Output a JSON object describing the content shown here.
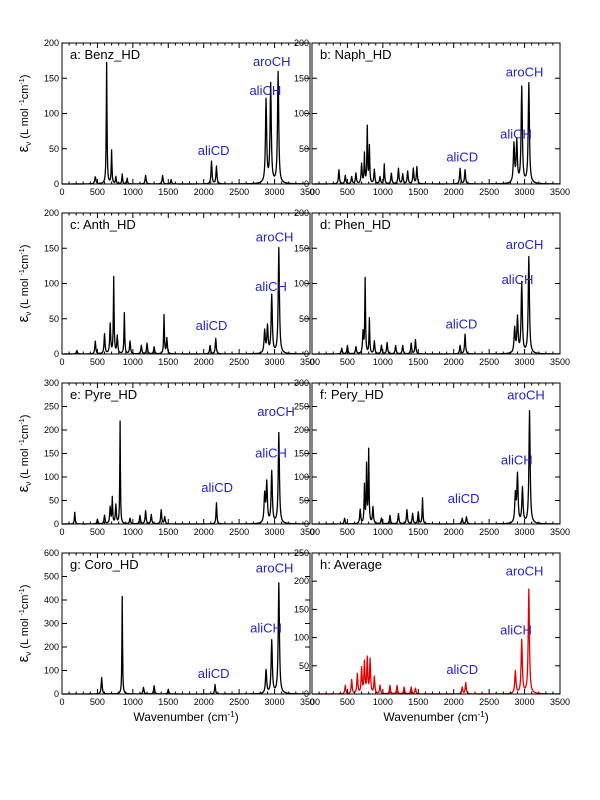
{
  "chart_data": {
    "type": "line",
    "colors": {
      "axis": "#000000",
      "spectrum": "#000000",
      "average": "#e00000",
      "band_label": "#2222cc"
    },
    "y_label": {
      "symbol": "ε",
      "sub": "ν",
      "units": "(L mol",
      "sup1": "-1",
      "mid": "cm",
      "sup2": "-1",
      "close": ")"
    },
    "x_label": {
      "text": "Wavenumber (cm",
      "sup": "-1",
      "close": ")"
    },
    "x_range": [
      0,
      3500
    ],
    "x_ticks": [
      "0",
      "500",
      "1000",
      "1500",
      "2000",
      "2500",
      "3000",
      "3500"
    ],
    "panels": [
      {
        "id": "a",
        "title": "a: Benz_HD",
        "ylim": [
          0,
          200
        ],
        "y_ticks": [
          "0",
          "50",
          "100",
          "150",
          "200"
        ],
        "color_key": "spectrum",
        "peaks": [
          [
            470,
            10,
            10
          ],
          [
            630,
            172,
            6
          ],
          [
            700,
            47,
            6
          ],
          [
            760,
            10,
            6
          ],
          [
            850,
            14,
            6
          ],
          [
            920,
            8,
            6
          ],
          [
            1180,
            12,
            8
          ],
          [
            1420,
            12,
            8
          ],
          [
            1540,
            6,
            8
          ],
          [
            2110,
            32,
            8
          ],
          [
            2180,
            25,
            8
          ],
          [
            2880,
            118,
            10
          ],
          [
            2945,
            140,
            10
          ],
          [
            3050,
            158,
            10
          ]
        ],
        "bands": [
          {
            "text": "aliCD",
            "x": 2140,
            "y": 37
          },
          {
            "text": "aliCH",
            "x": 2870,
            "y": 122
          },
          {
            "text": "aroCH",
            "x": 2960,
            "y": 163
          }
        ]
      },
      {
        "id": "b",
        "title": "b: Naph_HD",
        "ylim": [
          0,
          200
        ],
        "y_ticks": [
          "0",
          "50",
          "100",
          "150",
          "200"
        ],
        "color_key": "spectrum",
        "peaks": [
          [
            380,
            20,
            8
          ],
          [
            470,
            12,
            8
          ],
          [
            560,
            10,
            8
          ],
          [
            620,
            15,
            8
          ],
          [
            700,
            28,
            8
          ],
          [
            740,
            42,
            6
          ],
          [
            780,
            80,
            6
          ],
          [
            810,
            52,
            6
          ],
          [
            880,
            20,
            8
          ],
          [
            960,
            10,
            8
          ],
          [
            1020,
            28,
            6
          ],
          [
            1120,
            15,
            8
          ],
          [
            1220,
            22,
            8
          ],
          [
            1280,
            14,
            8
          ],
          [
            1350,
            18,
            8
          ],
          [
            1430,
            22,
            8
          ],
          [
            1480,
            24,
            8
          ],
          [
            2090,
            22,
            8
          ],
          [
            2160,
            20,
            8
          ],
          [
            2850,
            55,
            10
          ],
          [
            2890,
            58,
            10
          ],
          [
            2960,
            136,
            10
          ],
          [
            3060,
            142,
            10
          ]
        ],
        "bands": [
          {
            "text": "aliCD",
            "x": 2120,
            "y": 28
          },
          {
            "text": "aliCH",
            "x": 2880,
            "y": 60
          },
          {
            "text": "aroCH",
            "x": 3000,
            "y": 148
          }
        ]
      },
      {
        "id": "c",
        "title": "c: Anth_HD",
        "ylim": [
          0,
          200
        ],
        "y_ticks": [
          "0",
          "50",
          "100",
          "150",
          "200"
        ],
        "color_key": "spectrum",
        "peaks": [
          [
            210,
            5,
            8
          ],
          [
            470,
            18,
            8
          ],
          [
            600,
            28,
            8
          ],
          [
            680,
            42,
            8
          ],
          [
            730,
            108,
            6
          ],
          [
            780,
            25,
            8
          ],
          [
            880,
            58,
            6
          ],
          [
            960,
            18,
            8
          ],
          [
            1120,
            12,
            8
          ],
          [
            1200,
            15,
            8
          ],
          [
            1300,
            10,
            8
          ],
          [
            1440,
            55,
            6
          ],
          [
            1480,
            22,
            8
          ],
          [
            2090,
            12,
            8
          ],
          [
            2170,
            22,
            8
          ],
          [
            2860,
            32,
            10
          ],
          [
            2900,
            38,
            10
          ],
          [
            2960,
            82,
            10
          ],
          [
            3060,
            150,
            10
          ]
        ],
        "bands": [
          {
            "text": "aliCD",
            "x": 2110,
            "y": 30
          },
          {
            "text": "aliCH",
            "x": 2950,
            "y": 85
          },
          {
            "text": "aroCH",
            "x": 3000,
            "y": 155
          }
        ]
      },
      {
        "id": "d",
        "title": "d: Phen_HD",
        "ylim": [
          0,
          200
        ],
        "y_ticks": [
          "0",
          "50",
          "100",
          "150",
          "200"
        ],
        "color_key": "spectrum",
        "peaks": [
          [
            420,
            8,
            8
          ],
          [
            500,
            12,
            8
          ],
          [
            620,
            10,
            8
          ],
          [
            720,
            30,
            8
          ],
          [
            750,
            106,
            6
          ],
          [
            810,
            50,
            6
          ],
          [
            880,
            18,
            8
          ],
          [
            980,
            12,
            8
          ],
          [
            1060,
            16,
            8
          ],
          [
            1180,
            12,
            8
          ],
          [
            1280,
            12,
            8
          ],
          [
            1400,
            15,
            8
          ],
          [
            1460,
            20,
            8
          ],
          [
            2090,
            12,
            8
          ],
          [
            2160,
            28,
            8
          ],
          [
            2860,
            35,
            10
          ],
          [
            2900,
            50,
            10
          ],
          [
            2960,
            100,
            10
          ],
          [
            3060,
            137,
            10
          ]
        ],
        "bands": [
          {
            "text": "aliCD",
            "x": 2110,
            "y": 32
          },
          {
            "text": "aliCH",
            "x": 2900,
            "y": 95
          },
          {
            "text": "aroCH",
            "x": 3000,
            "y": 145
          }
        ]
      },
      {
        "id": "e",
        "title": "e: Pyre_HD",
        "ylim": [
          0,
          300
        ],
        "y_ticks": [
          "0",
          "50",
          "100",
          "150",
          "200",
          "250",
          "300"
        ],
        "color_key": "spectrum",
        "peaks": [
          [
            180,
            25,
            6
          ],
          [
            500,
            10,
            8
          ],
          [
            600,
            18,
            8
          ],
          [
            680,
            35,
            8
          ],
          [
            710,
            55,
            6
          ],
          [
            760,
            40,
            8
          ],
          [
            820,
            218,
            5
          ],
          [
            960,
            12,
            8
          ],
          [
            1100,
            18,
            8
          ],
          [
            1180,
            28,
            8
          ],
          [
            1260,
            20,
            8
          ],
          [
            1400,
            30,
            8
          ],
          [
            1450,
            15,
            8
          ],
          [
            2180,
            45,
            7
          ],
          [
            2860,
            60,
            10
          ],
          [
            2890,
            85,
            10
          ],
          [
            2960,
            110,
            10
          ],
          [
            3060,
            193,
            10
          ]
        ],
        "bands": [
          {
            "text": "aliCD",
            "x": 2190,
            "y": 62
          },
          {
            "text": "aliCH",
            "x": 2950,
            "y": 135
          },
          {
            "text": "aroCH",
            "x": 3020,
            "y": 223
          }
        ]
      },
      {
        "id": "f",
        "title": "f: Pery_HD",
        "ylim": [
          0,
          300
        ],
        "y_ticks": [
          "0",
          "50",
          "100",
          "150",
          "200",
          "250",
          "300"
        ],
        "color_key": "spectrum",
        "peaks": [
          [
            460,
            12,
            8
          ],
          [
            680,
            30,
            8
          ],
          [
            740,
            80,
            6
          ],
          [
            770,
            122,
            6
          ],
          [
            800,
            155,
            6
          ],
          [
            860,
            35,
            8
          ],
          [
            980,
            12,
            8
          ],
          [
            1100,
            18,
            8
          ],
          [
            1220,
            22,
            8
          ],
          [
            1340,
            30,
            8
          ],
          [
            1420,
            22,
            8
          ],
          [
            1500,
            25,
            8
          ],
          [
            1560,
            55,
            6
          ],
          [
            2120,
            12,
            8
          ],
          [
            2180,
            15,
            8
          ],
          [
            2870,
            60,
            10
          ],
          [
            2900,
            102,
            10
          ],
          [
            2970,
            75,
            10
          ],
          [
            3070,
            240,
            10
          ]
        ],
        "bands": [
          {
            "text": "aliCD",
            "x": 2140,
            "y": 38
          },
          {
            "text": "aliCH",
            "x": 2890,
            "y": 120
          },
          {
            "text": "aroCH",
            "x": 3020,
            "y": 258
          }
        ]
      },
      {
        "id": "g",
        "title": "g: Coro_HD",
        "ylim": [
          0,
          600
        ],
        "y_ticks": [
          "0",
          "100",
          "200",
          "300",
          "400",
          "500",
          "600"
        ],
        "color_key": "spectrum",
        "peaks": [
          [
            560,
            70,
            8
          ],
          [
            850,
            415,
            5
          ],
          [
            1150,
            28,
            8
          ],
          [
            1300,
            35,
            8
          ],
          [
            1500,
            20,
            8
          ],
          [
            2160,
            40,
            7
          ],
          [
            2880,
            100,
            10
          ],
          [
            2960,
            225,
            10
          ],
          [
            3060,
            470,
            10
          ]
        ],
        "bands": [
          {
            "text": "aliCD",
            "x": 2140,
            "y": 55
          },
          {
            "text": "aliCH",
            "x": 2880,
            "y": 250
          },
          {
            "text": "aroCH",
            "x": 3000,
            "y": 505
          }
        ]
      },
      {
        "id": "h",
        "title": "h: Average",
        "ylim": [
          0,
          250
        ],
        "y_ticks": [
          "0",
          "50",
          "100",
          "150",
          "200",
          "250"
        ],
        "color_key": "average",
        "peaks": [
          [
            470,
            15,
            8
          ],
          [
            560,
            25,
            8
          ],
          [
            640,
            35,
            8
          ],
          [
            700,
            45,
            8
          ],
          [
            740,
            55,
            8
          ],
          [
            780,
            62,
            8
          ],
          [
            820,
            60,
            8
          ],
          [
            880,
            30,
            8
          ],
          [
            960,
            15,
            8
          ],
          [
            1100,
            15,
            8
          ],
          [
            1200,
            15,
            8
          ],
          [
            1300,
            12,
            8
          ],
          [
            1400,
            12,
            8
          ],
          [
            1460,
            10,
            8
          ],
          [
            2120,
            12,
            8
          ],
          [
            2170,
            20,
            8
          ],
          [
            2870,
            40,
            10
          ],
          [
            2960,
            95,
            10
          ],
          [
            3060,
            185,
            10
          ]
        ],
        "bands": [
          {
            "text": "aliCD",
            "x": 2120,
            "y": 30
          },
          {
            "text": "aliCH",
            "x": 2880,
            "y": 100
          },
          {
            "text": "aroCH",
            "x": 3000,
            "y": 205
          }
        ]
      }
    ]
  }
}
